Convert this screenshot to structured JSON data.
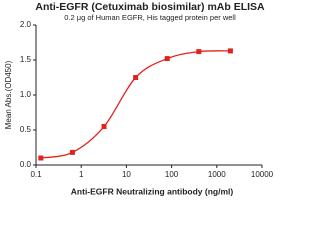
{
  "chart_data": {
    "type": "line",
    "title": "Anti-EGFR (Cetuximab biosimilar) mAb ELISA",
    "subtitle": "0.2 μg of Human EGFR, His tagged protein per well",
    "x_label": "Anti-EGFR Neutralizing antibody (ng/ml)",
    "y_label": "Mean Abs.(OD450)",
    "x_scale": "log",
    "x": [
      0.128,
      0.64,
      3.2,
      16,
      80,
      400,
      2000
    ],
    "series": [
      {
        "name": "Anti-EGFR",
        "color": "#e0241c",
        "values": [
          0.1,
          0.18,
          0.55,
          1.25,
          1.52,
          1.62,
          1.63
        ]
      }
    ],
    "xlim": [
      0.1,
      10000
    ],
    "xticks": [
      0.1,
      1,
      10,
      100,
      1000,
      10000
    ],
    "ylim": [
      0,
      2
    ],
    "yticks": [
      {
        "value": 0,
        "label": "0.0"
      },
      0.5,
      {
        "value": 1,
        "label": "1.0"
      },
      1.5,
      {
        "value": 2,
        "label": "2.0"
      }
    ]
  }
}
